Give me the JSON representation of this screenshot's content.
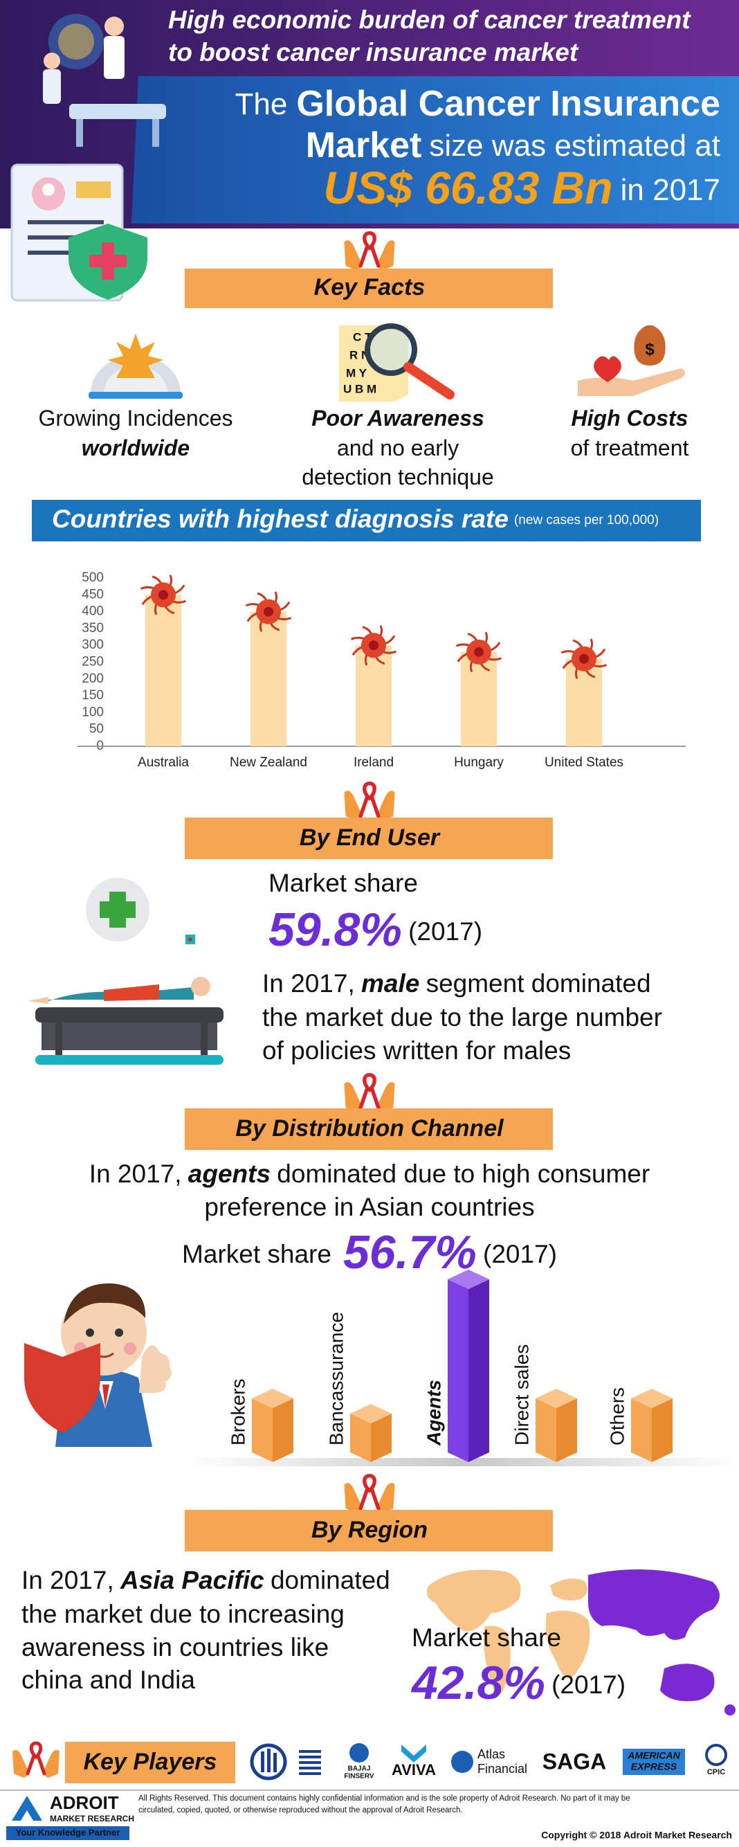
{
  "header": {
    "title_lines": [
      "High economic burden of cancer treatment",
      "to boost cancer insurance market"
    ],
    "statement_lines": [
      [
        {
          "text": "The"
        },
        {
          "text": "Global Cancer Insurance",
          "style": "strong"
        }
      ],
      [
        {
          "text": "Market",
          "style": "strong"
        },
        {
          "text": "size was estimated at"
        }
      ],
      [
        {
          "text": "US$ 66.83 Bn",
          "style": "highlight"
        },
        {
          "text": "in 2017"
        }
      ]
    ]
  },
  "key_facts": {
    "heading": "Key Facts",
    "eye_chart_rows": [
      "C T",
      "R N",
      "M Y",
      "U B M"
    ],
    "money_symbol": "$",
    "facts": [
      {
        "lines": [
          [
            {
              "text": "Growing Incidences"
            }
          ],
          [
            {
              "text": "worldwide",
              "style": "em"
            }
          ]
        ]
      },
      {
        "lines": [
          [
            {
              "text": "Poor Awareness",
              "style": "em"
            }
          ],
          [
            {
              "text": "and no early"
            }
          ],
          [
            {
              "text": "detection technique"
            }
          ]
        ]
      },
      {
        "lines": [
          [
            {
              "text": "High Costs",
              "style": "em"
            }
          ],
          [
            {
              "text": "of treatment"
            }
          ]
        ]
      }
    ]
  },
  "chart_data": {
    "type": "bar",
    "title": "Countries with highest diagnosis rate",
    "subtitle": "(new cases per 100,000)",
    "categories": [
      "Australia",
      "New Zealand",
      "Ireland",
      "Hungary",
      "United States"
    ],
    "values": [
      450,
      400,
      300,
      280,
      260
    ],
    "color": "#fddca5",
    "ylim": [
      0,
      500
    ],
    "yticks": [
      0,
      50,
      100,
      150,
      200,
      250,
      300,
      350,
      400,
      450,
      500
    ],
    "grid": false
  },
  "end_user": {
    "heading": "By End User",
    "share_label": "Market share",
    "share_line": [
      {
        "text": "59.8%",
        "style": "value"
      },
      {
        "text": "(2017)"
      }
    ],
    "paragraph": [
      [
        {
          "text": "In 2017,"
        },
        {
          "text": "male",
          "style": "em"
        },
        {
          "text": "segment dominated"
        }
      ],
      [
        {
          "text": "the market due to the large number"
        }
      ],
      [
        {
          "text": "of policies written for males"
        }
      ]
    ]
  },
  "distribution": {
    "heading": "By Distribution Channel",
    "paragraph": [
      [
        {
          "text": "In 2017,"
        },
        {
          "text": "agents",
          "style": "em"
        },
        {
          "text": "dominated due to high consumer"
        }
      ],
      [
        {
          "text": "preference in Asian countries"
        }
      ]
    ],
    "share_line": [
      {
        "text": "Market share"
      },
      {
        "text": "56.7%",
        "style": "value"
      },
      {
        "text": "(2017)"
      }
    ],
    "channels": [
      {
        "name": "Brokers"
      },
      {
        "name": "Bancassurance"
      },
      {
        "name": "Agents",
        "style": "em"
      },
      {
        "name": "Direct sales"
      },
      {
        "name": "Others"
      }
    ]
  },
  "region": {
    "heading": "By Region",
    "paragraph": [
      [
        {
          "text": "In 2017,"
        },
        {
          "text": "Asia Pacific",
          "style": "em"
        },
        {
          "text": "dominated"
        }
      ],
      [
        {
          "text": "the market due to increasing"
        }
      ],
      [
        {
          "text": "awareness in countries like"
        }
      ],
      [
        {
          "text": "china and India"
        }
      ]
    ],
    "share_label": "Market share",
    "share_line": [
      {
        "text": "42.8%",
        "style": "value"
      },
      {
        "text": "(2017)"
      }
    ]
  },
  "key_players": {
    "heading": "Key Players",
    "logos": [
      {
        "lines": [
          "BAJAJ",
          "FINSERV"
        ]
      },
      {
        "lines": [
          "AVIVA"
        ]
      },
      {
        "lines": [
          "Atlas",
          "Financial"
        ]
      },
      {
        "lines": [
          "SAGA"
        ]
      },
      {
        "lines": [
          "AMERICAN",
          "EXPRESS"
        ]
      },
      {
        "lines": [
          "CPIC"
        ]
      }
    ]
  },
  "footer": {
    "brand": "ADROIT",
    "brand_sub": "MARKET RESEARCH",
    "tagline": "Your Knowledge Partner",
    "notice_lines": [
      "All Rights Reserved. This document contains highly confidential information and is the sole property of Adroit Research. No part of it may be",
      "circulated, copied, quoted, or otherwise reproduced without the approval of Adroit Research."
    ],
    "copyright": "Copyright © 2018 Adroit Market Research"
  }
}
